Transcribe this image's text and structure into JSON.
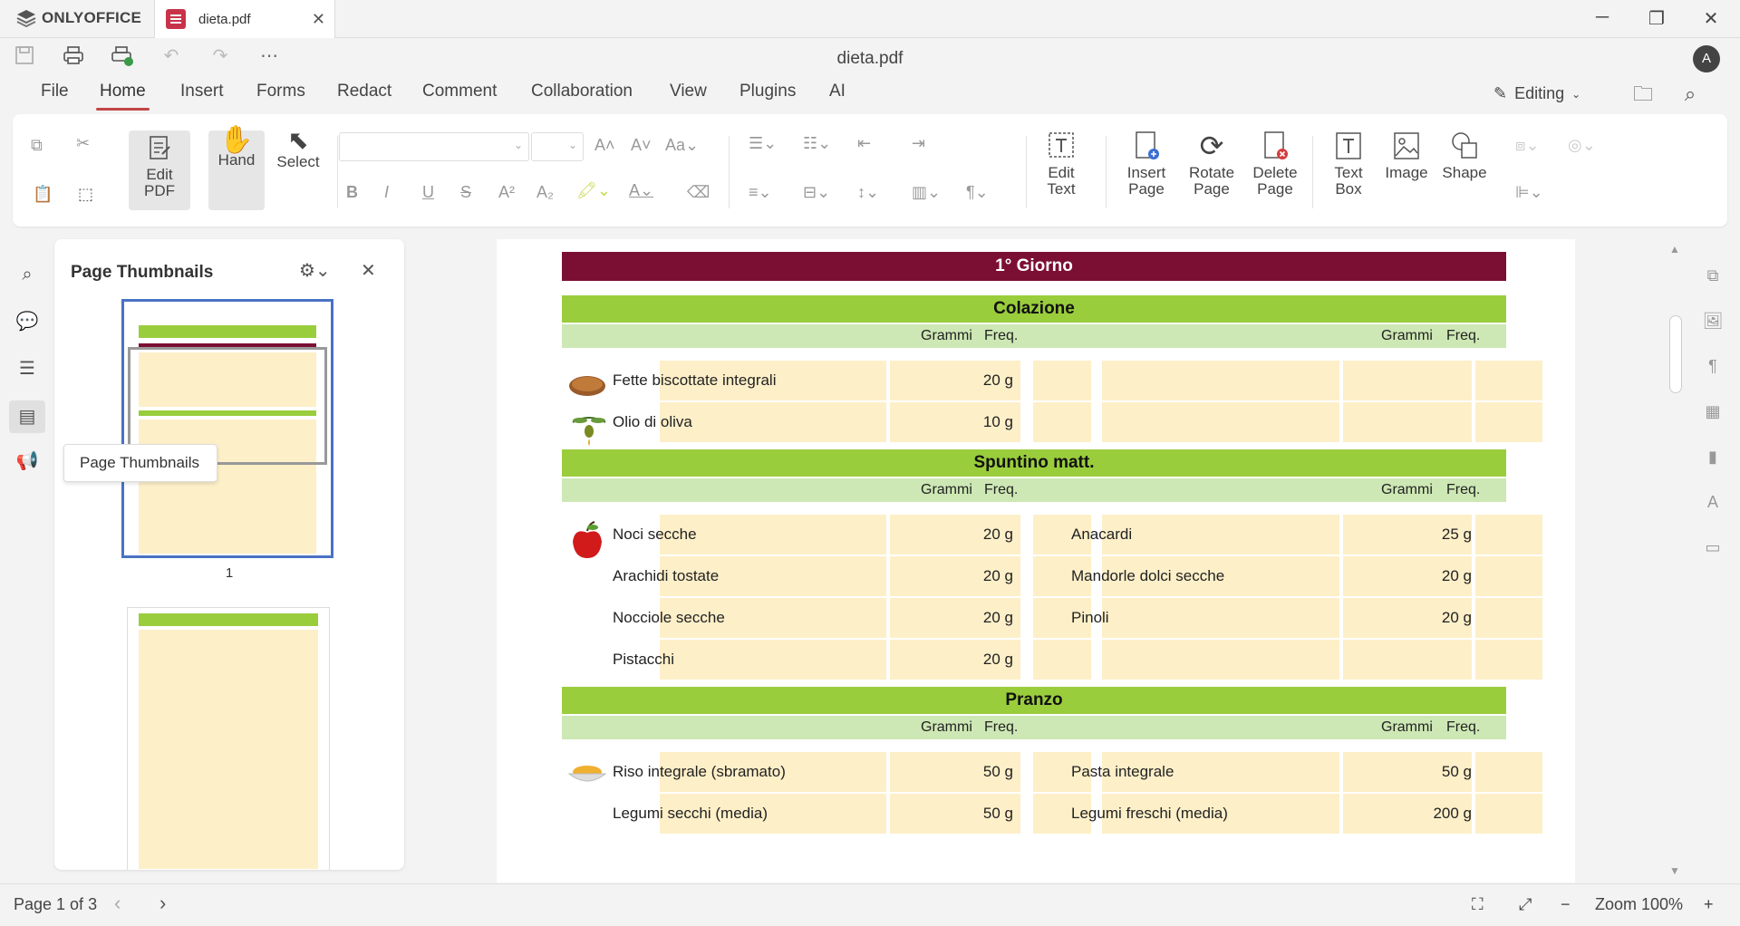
{
  "app": {
    "brand": "ONLYOFFICE",
    "tab_label": "dieta.pdf",
    "doc_title": "dieta.pdf",
    "avatar": "A"
  },
  "window": {
    "minimize": "─",
    "restore": "❐",
    "close": "✕"
  },
  "menu": [
    "File",
    "Home",
    "Insert",
    "Forms",
    "Redact",
    "Comment",
    "Collaboration",
    "View",
    "Plugins",
    "AI"
  ],
  "mode": {
    "label": "Editing"
  },
  "ribbon": {
    "edit_pdf": [
      "Edit",
      "PDF"
    ],
    "hand": "Hand",
    "select": "Select",
    "edit_text": [
      "Edit",
      "Text"
    ],
    "insert_page": [
      "Insert",
      "Page"
    ],
    "rotate_page": [
      "Rotate",
      "Page"
    ],
    "delete_page": [
      "Delete",
      "Page"
    ],
    "text_box": [
      "Text",
      "Box"
    ],
    "image": "Image",
    "shape": "Shape"
  },
  "thumbnails": {
    "title": "Page Thumbnails",
    "tooltip": "Page Thumbnails",
    "page1_number": "1"
  },
  "document": {
    "day": "1° Giorno",
    "col_grams": "Grammi",
    "col_freq": "Freq.",
    "sections": [
      {
        "title": "Colazione",
        "rows": [
          {
            "left": "Fette biscottate integrali",
            "lg": "20 g",
            "right": "",
            "rg": ""
          },
          {
            "left": "Olio di oliva",
            "lg": "10 g",
            "right": "",
            "rg": ""
          }
        ]
      },
      {
        "title": "Spuntino matt.",
        "rows": [
          {
            "left": "Noci secche",
            "lg": "20 g",
            "right": "Anacardi",
            "rg": "25 g"
          },
          {
            "left": "Arachidi tostate",
            "lg": "20 g",
            "right": "Mandorle dolci secche",
            "rg": "20 g"
          },
          {
            "left": "Nocciole secche",
            "lg": "20 g",
            "right": "Pinoli",
            "rg": "20 g"
          },
          {
            "left": "Pistacchi",
            "lg": "20 g",
            "right": "",
            "rg": ""
          }
        ]
      },
      {
        "title": "Pranzo",
        "rows": [
          {
            "left": "Riso integrale (sbramato)",
            "lg": "50 g",
            "right": "Pasta integrale",
            "rg": "50 g"
          },
          {
            "left": "Legumi secchi (media)",
            "lg": "50 g",
            "right": "Legumi freschi (media)",
            "rg": "200 g"
          }
        ]
      }
    ]
  },
  "status": {
    "page": "Page 1 of 3",
    "zoom": "Zoom 100%"
  },
  "colors": {
    "accent": "#c24646",
    "day_header": "#7b0f33",
    "meal_header": "#9acd3c",
    "col_header": "#cde8b4",
    "cell": "#fdefc8",
    "thumb_border": "#4a72c4"
  }
}
